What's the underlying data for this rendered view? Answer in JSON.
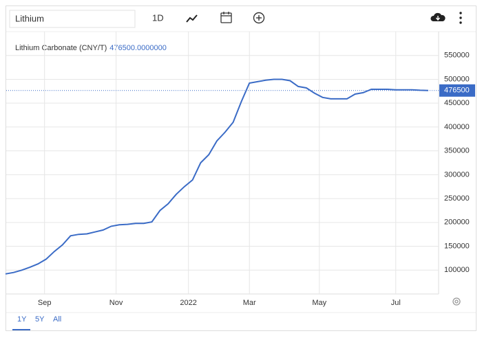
{
  "toolbar": {
    "search": "Lithium",
    "interval": "1D"
  },
  "range_tabs": [
    "1Y",
    "5Y",
    "All"
  ],
  "chart_data": {
    "type": "line",
    "title": "Lithium Carbonate (CNY/T)",
    "legend_value": "476500.0000000",
    "color": "#3a6bc6",
    "values": [
      92000,
      95000,
      100000,
      106000,
      113000,
      123000,
      139000,
      153000,
      172000,
      175000,
      176000,
      180000,
      184000,
      192000,
      195000,
      196000,
      198000,
      198000,
      201000,
      225000,
      239000,
      259000,
      275000,
      289000,
      325000,
      342000,
      371000,
      389000,
      410000,
      453000,
      492000,
      495000,
      498000,
      500000,
      500000,
      497000,
      485000,
      482000,
      471000,
      462000,
      459000,
      459000,
      459000,
      469000,
      472000,
      479000,
      479000,
      479000,
      478000,
      478000,
      478000,
      477000,
      476500
    ],
    "xlim": [
      0,
      52
    ],
    "xticks": [
      {
        "value": 4.8,
        "label": "Sep"
      },
      {
        "value": 13.6,
        "label": "Nov"
      },
      {
        "value": 22.5,
        "label": "2022"
      },
      {
        "value": 30.0,
        "label": "Mar"
      },
      {
        "value": 38.6,
        "label": "May"
      },
      {
        "value": 48.0,
        "label": "Jul"
      }
    ],
    "ylim": [
      50000,
      600000
    ],
    "yticks": [
      100000,
      150000,
      200000,
      250000,
      300000,
      350000,
      400000,
      450000,
      500000,
      550000
    ],
    "grid": true
  }
}
